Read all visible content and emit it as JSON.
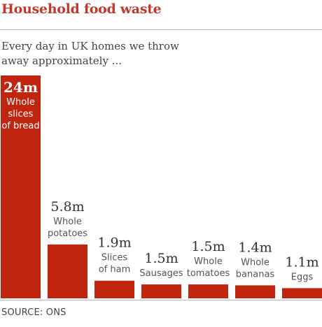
{
  "chart_data": {
    "type": "bar",
    "title": "Household food waste",
    "subtitle": "Every day in UK homes we throw away approximately ...",
    "source": "SOURCE: ONS",
    "unit_suffix": "m",
    "categories": [
      "Whole slices of bread",
      "Whole potatoes",
      "Slices of ham",
      "Sausages",
      "Whole tomatoes",
      "Whole bananas",
      "Eggs"
    ],
    "category_lines": [
      [
        "Whole",
        "slices",
        "of bread"
      ],
      [
        "Whole",
        "potatoes"
      ],
      [
        "Slices",
        "of ham"
      ],
      [
        "Sausages"
      ],
      [
        "Whole",
        "tomatoes"
      ],
      [
        "Whole",
        "bananas"
      ],
      [
        "Eggs"
      ]
    ],
    "values": [
      24,
      5.8,
      1.9,
      1.5,
      1.5,
      1.4,
      1.1
    ],
    "value_labels": [
      "24m",
      "5.8m",
      "1.9m",
      "1.5m",
      "1.5m",
      "1.4m",
      "1.1m"
    ],
    "ylim": [
      0,
      24
    ],
    "bar_color": "#c0260f",
    "title_color": "#c0392b"
  }
}
